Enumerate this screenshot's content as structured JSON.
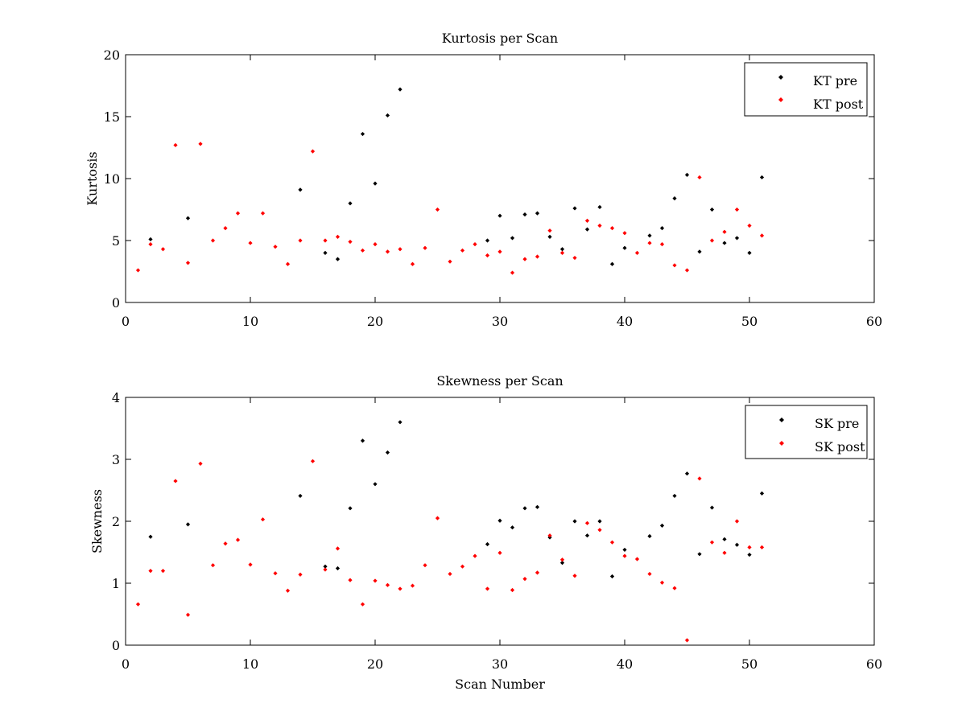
{
  "chart_data": [
    {
      "type": "scatter",
      "title": "Kurtosis per Scan",
      "xlabel": "",
      "ylabel": "Kurtosis",
      "xlim": [
        0,
        60
      ],
      "ylim": [
        0,
        20
      ],
      "xticks": [
        "0",
        "10",
        "20",
        "30",
        "40",
        "50",
        "60"
      ],
      "yticks": [
        "0",
        "5",
        "10",
        "15",
        "20"
      ],
      "grid": false,
      "legend_position": "top-right",
      "series": [
        {
          "name": "KT pre",
          "color": "#000000",
          "points": [
            [
              2,
              5.1
            ],
            [
              5,
              6.8
            ],
            [
              14,
              9.1
            ],
            [
              16,
              4.0
            ],
            [
              17,
              3.5
            ],
            [
              18,
              8.0
            ],
            [
              19,
              13.6
            ],
            [
              20,
              9.6
            ],
            [
              21,
              15.1
            ],
            [
              22,
              17.2
            ],
            [
              29,
              5.0
            ],
            [
              30,
              7.0
            ],
            [
              31,
              5.2
            ],
            [
              32,
              7.1
            ],
            [
              33,
              7.2
            ],
            [
              34,
              5.3
            ],
            [
              35,
              4.3
            ],
            [
              36,
              7.6
            ],
            [
              37,
              5.9
            ],
            [
              38,
              7.7
            ],
            [
              39,
              3.1
            ],
            [
              40,
              4.4
            ],
            [
              42,
              5.4
            ],
            [
              43,
              6.0
            ],
            [
              44,
              8.4
            ],
            [
              45,
              10.3
            ],
            [
              46,
              4.1
            ],
            [
              47,
              7.5
            ],
            [
              48,
              4.8
            ],
            [
              49,
              5.2
            ],
            [
              50,
              4.0
            ],
            [
              51,
              10.1
            ]
          ]
        },
        {
          "name": "KT post",
          "color": "#ff0000",
          "points": [
            [
              1,
              2.6
            ],
            [
              2,
              4.7
            ],
            [
              3,
              4.3
            ],
            [
              4,
              12.7
            ],
            [
              5,
              3.2
            ],
            [
              6,
              12.8
            ],
            [
              7,
              5.0
            ],
            [
              8,
              6.0
            ],
            [
              9,
              7.2
            ],
            [
              10,
              4.8
            ],
            [
              11,
              7.2
            ],
            [
              12,
              4.5
            ],
            [
              13,
              3.1
            ],
            [
              14,
              5.0
            ],
            [
              15,
              12.2
            ],
            [
              16,
              5.0
            ],
            [
              17,
              5.3
            ],
            [
              18,
              4.9
            ],
            [
              19,
              4.2
            ],
            [
              20,
              4.7
            ],
            [
              21,
              4.1
            ],
            [
              22,
              4.3
            ],
            [
              23,
              3.1
            ],
            [
              24,
              4.4
            ],
            [
              25,
              7.5
            ],
            [
              26,
              3.3
            ],
            [
              27,
              4.2
            ],
            [
              28,
              4.7
            ],
            [
              29,
              3.8
            ],
            [
              30,
              4.1
            ],
            [
              31,
              2.4
            ],
            [
              32,
              3.5
            ],
            [
              33,
              3.7
            ],
            [
              34,
              5.8
            ],
            [
              35,
              4.0
            ],
            [
              36,
              3.6
            ],
            [
              37,
              6.6
            ],
            [
              38,
              6.2
            ],
            [
              39,
              6.0
            ],
            [
              40,
              5.6
            ],
            [
              41,
              4.0
            ],
            [
              42,
              4.8
            ],
            [
              43,
              4.7
            ],
            [
              44,
              3.0
            ],
            [
              45,
              2.6
            ],
            [
              46,
              10.1
            ],
            [
              47,
              5.0
            ],
            [
              48,
              5.7
            ],
            [
              49,
              7.5
            ],
            [
              50,
              6.2
            ],
            [
              51,
              5.4
            ]
          ]
        }
      ]
    },
    {
      "type": "scatter",
      "title": "Skewness per Scan",
      "xlabel": "Scan Number",
      "ylabel": "Skewness",
      "xlim": [
        0,
        60
      ],
      "ylim": [
        0,
        4
      ],
      "xticks": [
        "0",
        "10",
        "20",
        "30",
        "40",
        "50",
        "60"
      ],
      "yticks": [
        "0",
        "1",
        "2",
        "3",
        "4"
      ],
      "grid": false,
      "legend_position": "top-right",
      "series": [
        {
          "name": "SK pre",
          "color": "#000000",
          "points": [
            [
              2,
              1.75
            ],
            [
              5,
              1.95
            ],
            [
              14,
              2.41
            ],
            [
              16,
              1.27
            ],
            [
              17,
              1.24
            ],
            [
              18,
              2.21
            ],
            [
              19,
              3.3
            ],
            [
              20,
              2.6
            ],
            [
              21,
              3.11
            ],
            [
              22,
              3.6
            ],
            [
              29,
              1.63
            ],
            [
              30,
              2.01
            ],
            [
              31,
              1.9
            ],
            [
              32,
              2.21
            ],
            [
              33,
              2.23
            ],
            [
              34,
              1.74
            ],
            [
              35,
              1.33
            ],
            [
              36,
              2.0
            ],
            [
              37,
              1.77
            ],
            [
              38,
              2.0
            ],
            [
              39,
              1.11
            ],
            [
              40,
              1.54
            ],
            [
              42,
              1.76
            ],
            [
              43,
              1.93
            ],
            [
              44,
              2.41
            ],
            [
              45,
              2.77
            ],
            [
              46,
              1.47
            ],
            [
              47,
              2.22
            ],
            [
              48,
              1.71
            ],
            [
              49,
              1.62
            ],
            [
              50,
              1.46
            ],
            [
              51,
              2.45
            ]
          ]
        },
        {
          "name": "SK post",
          "color": "#ff0000",
          "points": [
            [
              1,
              0.66
            ],
            [
              2,
              1.2
            ],
            [
              3,
              1.2
            ],
            [
              4,
              2.65
            ],
            [
              5,
              0.49
            ],
            [
              6,
              2.93
            ],
            [
              7,
              1.29
            ],
            [
              8,
              1.64
            ],
            [
              9,
              1.7
            ],
            [
              10,
              1.3
            ],
            [
              11,
              2.03
            ],
            [
              12,
              1.16
            ],
            [
              13,
              0.88
            ],
            [
              14,
              1.14
            ],
            [
              15,
              2.97
            ],
            [
              16,
              1.22
            ],
            [
              17,
              1.56
            ],
            [
              18,
              1.05
            ],
            [
              19,
              0.66
            ],
            [
              20,
              1.04
            ],
            [
              21,
              0.97
            ],
            [
              22,
              0.91
            ],
            [
              23,
              0.96
            ],
            [
              24,
              1.29
            ],
            [
              25,
              2.05
            ],
            [
              26,
              1.15
            ],
            [
              27,
              1.27
            ],
            [
              28,
              1.44
            ],
            [
              29,
              0.91
            ],
            [
              30,
              1.49
            ],
            [
              31,
              0.89
            ],
            [
              32,
              1.07
            ],
            [
              33,
              1.17
            ],
            [
              34,
              1.77
            ],
            [
              35,
              1.38
            ],
            [
              36,
              1.12
            ],
            [
              37,
              1.97
            ],
            [
              38,
              1.86
            ],
            [
              39,
              1.66
            ],
            [
              40,
              1.44
            ],
            [
              41,
              1.39
            ],
            [
              42,
              1.15
            ],
            [
              43,
              1.01
            ],
            [
              44,
              0.92
            ],
            [
              45,
              0.08
            ],
            [
              46,
              2.69
            ],
            [
              47,
              1.66
            ],
            [
              48,
              1.49
            ],
            [
              49,
              2.0
            ],
            [
              50,
              1.58
            ],
            [
              51,
              1.58
            ]
          ]
        }
      ]
    }
  ]
}
